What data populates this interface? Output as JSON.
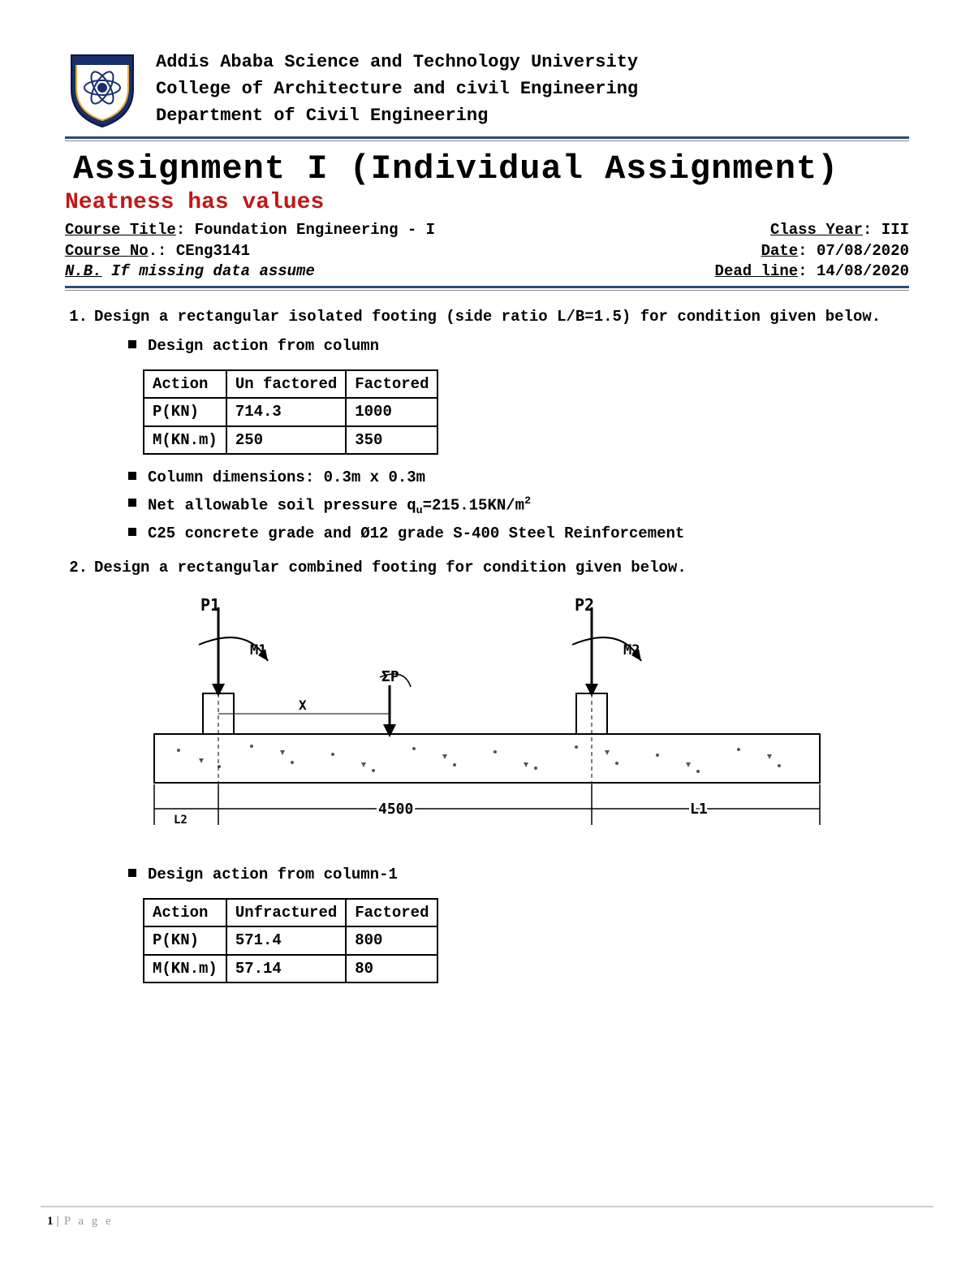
{
  "header": {
    "line1": "Addis Ababa Science and Technology University",
    "line2": "College of Architecture and civil Engineering",
    "line3": "Department of Civil Engineering"
  },
  "logo": {
    "shield_colors": {
      "outer": "#1a2e6b",
      "accent": "#e8b030",
      "inner": "#ffffff"
    }
  },
  "title": "Assignment I (Individual Assignment)",
  "subtitle": "Neatness has values",
  "meta": {
    "course_title_label": "Course Title",
    "course_title_value": ": Foundation Engineering - I",
    "class_year_label": "Class Year",
    "class_year_value": ": III",
    "course_no_label": "Course No",
    "course_no_value": ".: CEng3141",
    "date_label": "Date",
    "date_value": ": 07/08/2020",
    "nb_label": "N.B.",
    "nb_text": " If missing data assume",
    "deadline_label": "Dead line",
    "deadline_value": ": 14/08/2020"
  },
  "q1": {
    "number": "1.",
    "text": "Design a rectangular isolated footing (side ratio L/B=1.5) for condition given below.",
    "bullet_intro": "Design action from column",
    "table": {
      "columns": [
        "Action",
        "Un factored",
        "Factored"
      ],
      "rows": [
        [
          "P(KN)",
          "714.3",
          "1000"
        ],
        [
          "M(KN.m)",
          "250",
          "350"
        ]
      ]
    },
    "bullets_after": [
      "Column dimensions: 0.3m x 0.3m",
      "Net allowable soil pressure q",
      "C25 concrete grade and Ø12 grade S-400 Steel Reinforcement"
    ],
    "soil_sub": "u",
    "soil_rest": "=215.15KN/m",
    "soil_sup": "2"
  },
  "q2": {
    "number": "2.",
    "text": "Design a rectangular combined footing for condition given below.",
    "diagram": {
      "labels": {
        "p1": "P1",
        "p2": "P2",
        "m1": "M1",
        "m2": "M2",
        "sigma": "ΣP",
        "x": "X",
        "dim_main": "4500",
        "dim_L1": "L1",
        "dim_L2": "L2"
      },
      "colors": {
        "stroke": "#000000",
        "fill_footing": "#ffffff",
        "speckle": "#555555"
      }
    },
    "bullet_after_diagram": "Design action from column-1",
    "table": {
      "columns": [
        "Action",
        "Unfractured",
        "Factored"
      ],
      "rows": [
        [
          "P(KN)",
          "571.4",
          "800"
        ],
        [
          "M(KN.m)",
          "57.14",
          "80"
        ]
      ]
    }
  },
  "footer": {
    "page_num": "1",
    "bar": "|",
    "page_word": "P a g e"
  }
}
